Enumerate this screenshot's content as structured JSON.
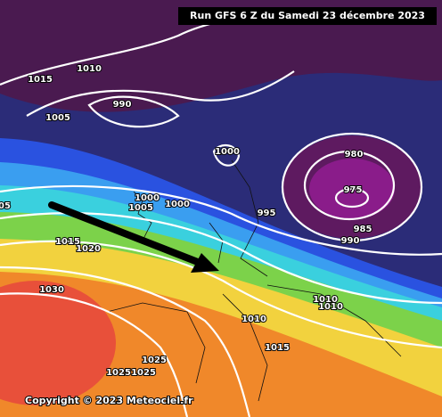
{
  "header": {
    "title": "Run GFS 6 Z du Samedi 23 décembre 2023"
  },
  "isobar_labels": [
    "1015",
    "1010",
    "1005",
    "990",
    "1000",
    "980",
    "975",
    "985",
    "990",
    "995",
    "1000",
    "1005",
    "1000",
    "05",
    "1015",
    "1020",
    "1030",
    "1010",
    "1010",
    "1010",
    "1015",
    "1025",
    "1025",
    "1025"
  ],
  "footer": {
    "copyright": "Copyright © 2023 Meteociel.fr"
  }
}
